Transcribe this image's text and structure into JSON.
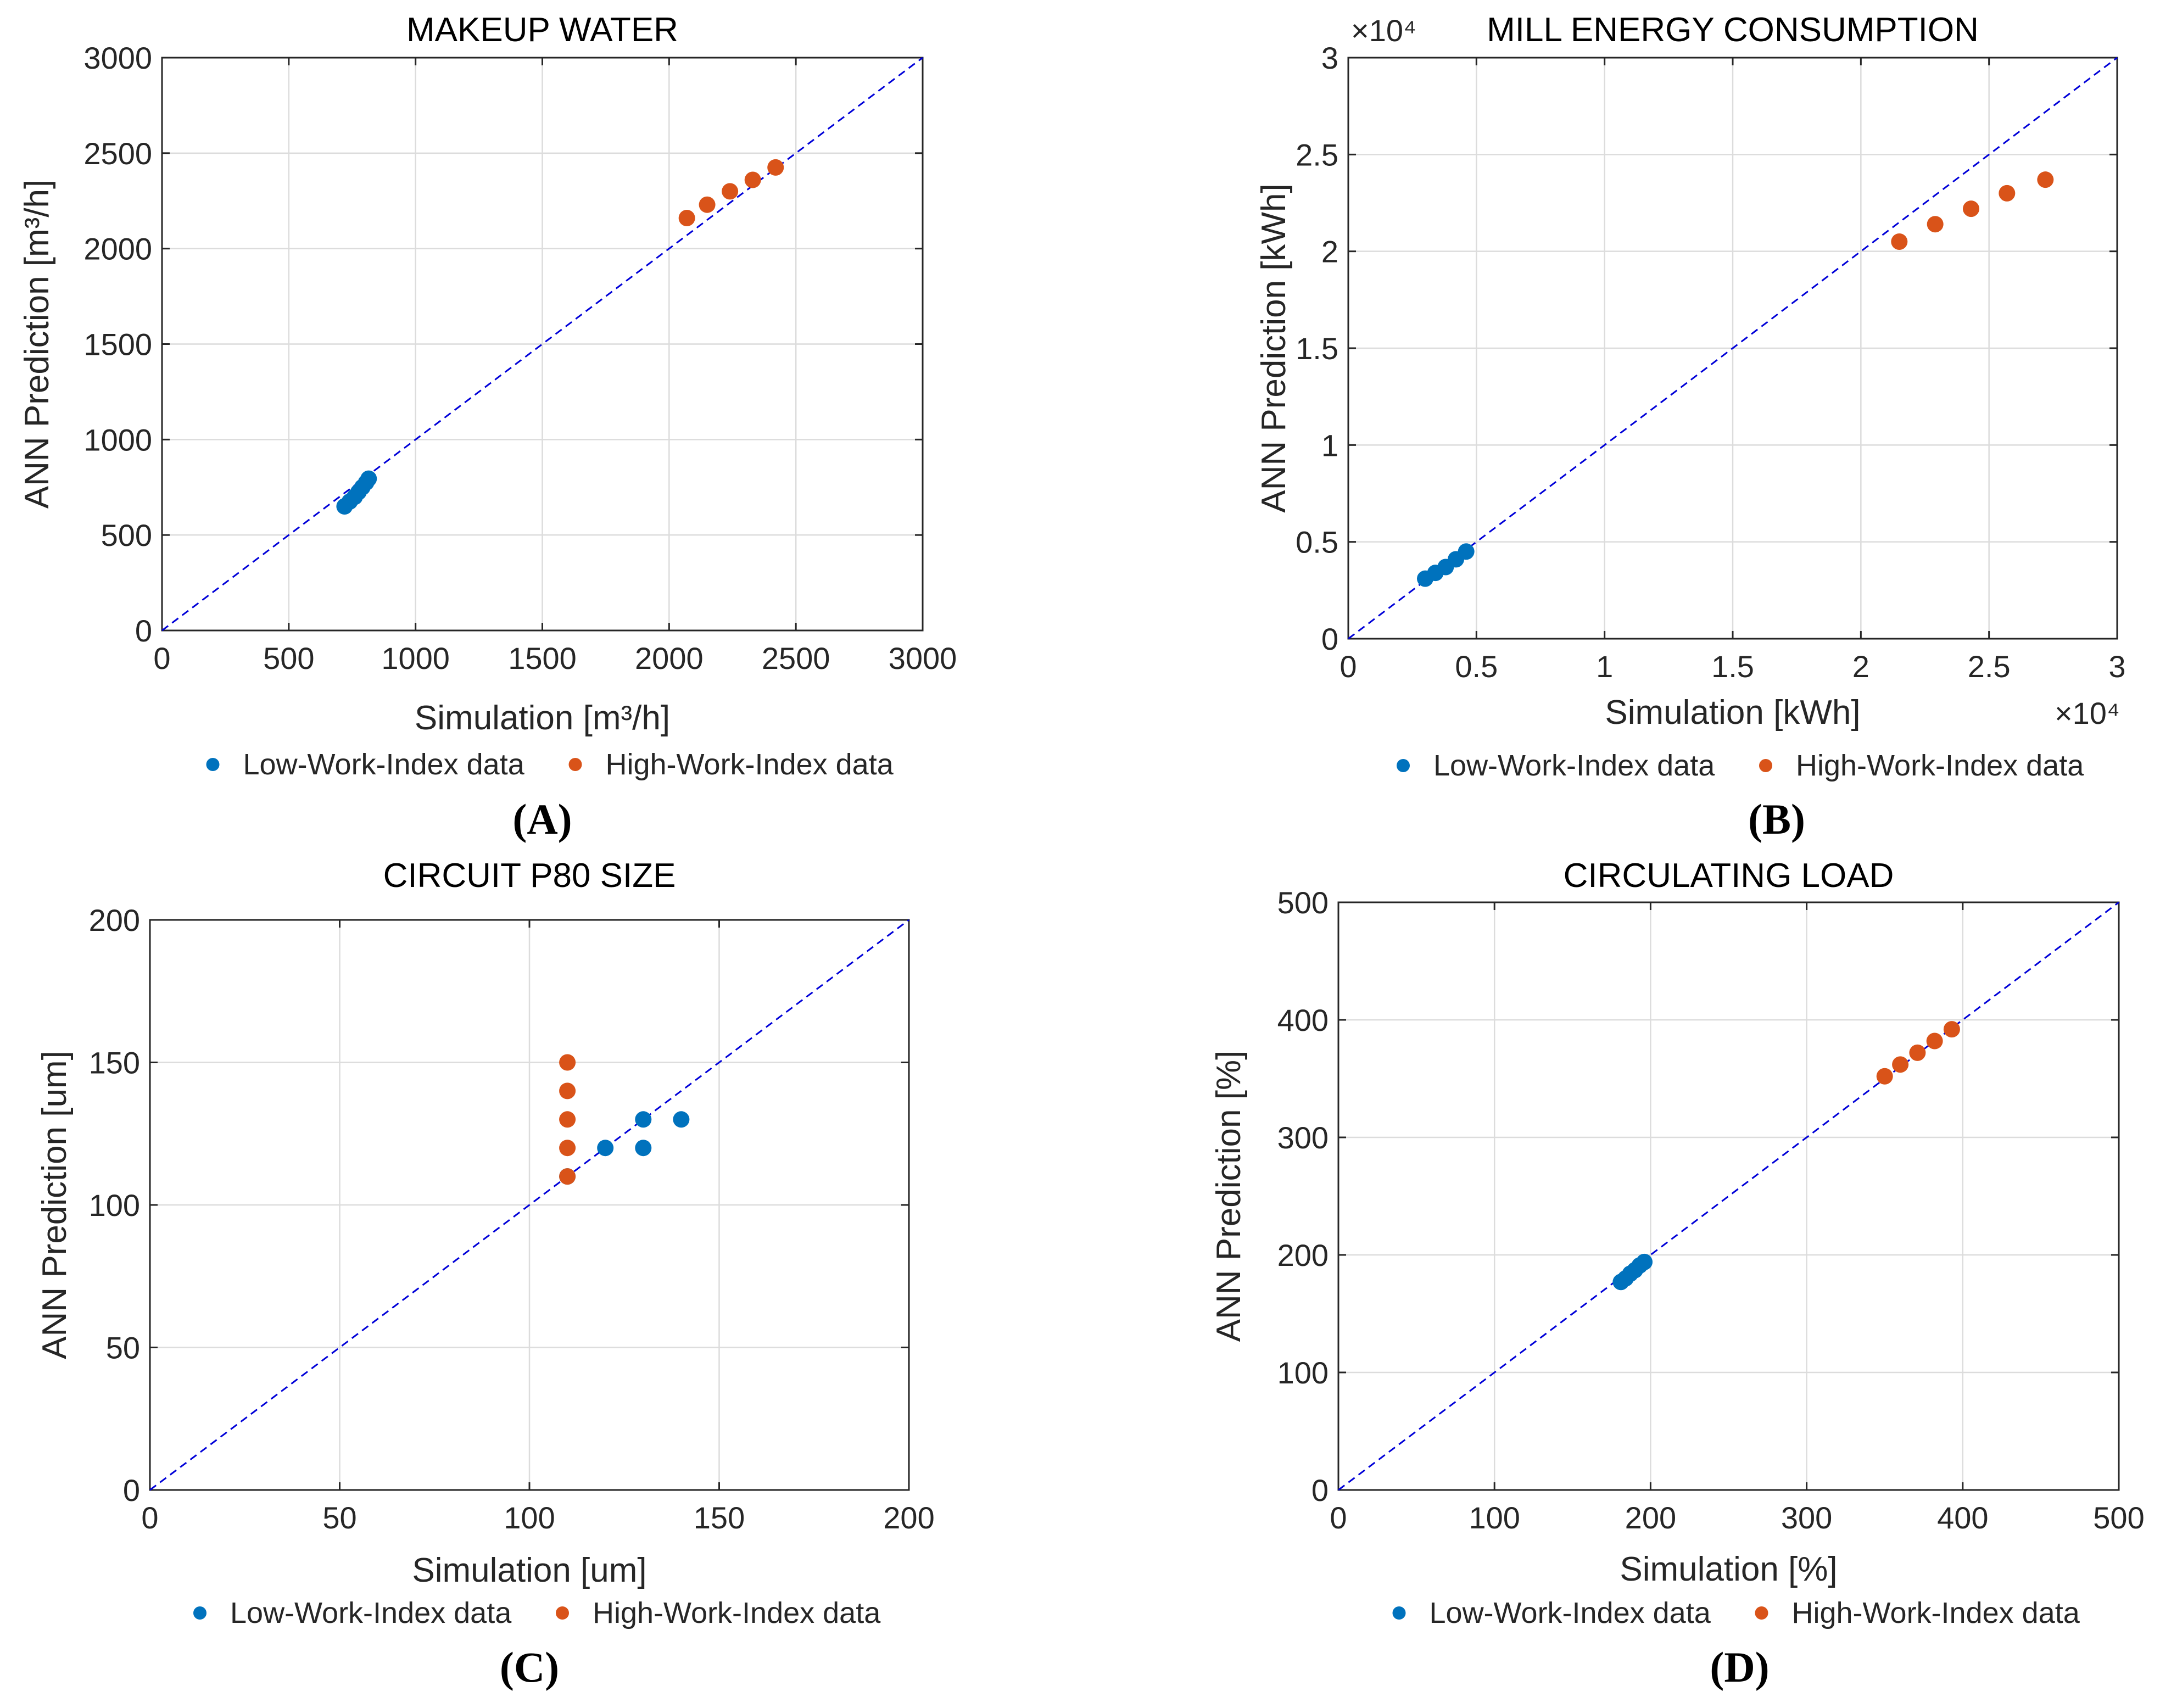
{
  "chart_data": [
    {
      "type": "scatter",
      "title": "MAKEUP WATER",
      "xlabel": "Simulation [m³/h]",
      "ylabel": "ANN Prediction [m³/h]",
      "xlim": [
        0,
        3000
      ],
      "ylim": [
        0,
        3000
      ],
      "xticks": [
        0,
        500,
        1000,
        1500,
        2000,
        2500,
        3000
      ],
      "yticks": [
        0,
        500,
        1000,
        1500,
        2000,
        2500,
        3000
      ],
      "xtick_labels": [
        "0",
        "500",
        "1000",
        "1500",
        "2000",
        "2500",
        "3000"
      ],
      "ytick_labels": [
        "0",
        "500",
        "1000",
        "1500",
        "2000",
        "2500",
        "3000"
      ],
      "x_exponent": "",
      "y_exponent": "",
      "panel_label": "(A)",
      "grid": true,
      "legend_position": "bottom",
      "reference_line": "y = x",
      "series": [
        {
          "name": "Low-Work-Index data",
          "color": "#0072bd",
          "points": [
            [
              720,
              650
            ],
            [
              740,
              675
            ],
            [
              760,
              700
            ],
            [
              775,
              725
            ],
            [
              790,
              750
            ],
            [
              805,
              775
            ],
            [
              815,
              795
            ]
          ]
        },
        {
          "name": "High-Work-Index data",
          "color": "#d95319",
          "points": [
            [
              2070,
              2160
            ],
            [
              2150,
              2230
            ],
            [
              2240,
              2300
            ],
            [
              2330,
              2360
            ],
            [
              2420,
              2425
            ]
          ]
        }
      ]
    },
    {
      "type": "scatter",
      "title": "MILL ENERGY CONSUMPTION",
      "xlabel": "Simulation [kWh]",
      "ylabel": "ANN Prediction [kWh]",
      "xlim": [
        0,
        30000
      ],
      "ylim": [
        0,
        30000
      ],
      "xticks": [
        0,
        5000,
        10000,
        15000,
        20000,
        25000,
        30000
      ],
      "yticks": [
        0,
        5000,
        10000,
        15000,
        20000,
        25000,
        30000
      ],
      "xtick_labels": [
        "0",
        "0.5",
        "1",
        "1.5",
        "2",
        "2.5",
        "3"
      ],
      "ytick_labels": [
        "0",
        "0.5",
        "1",
        "1.5",
        "2",
        "2.5",
        "3"
      ],
      "x_exponent": "×10⁴",
      "y_exponent": "×10⁴",
      "panel_label": "(B)",
      "grid": true,
      "legend_position": "bottom",
      "reference_line": "y = x",
      "series": [
        {
          "name": "Low-Work-Index data",
          "color": "#0072bd",
          "points": [
            [
              3000,
              3100
            ],
            [
              3400,
              3400
            ],
            [
              3800,
              3700
            ],
            [
              4200,
              4100
            ],
            [
              4600,
              4500
            ]
          ]
        },
        {
          "name": "High-Work-Index data",
          "color": "#d95319",
          "points": [
            [
              21500,
              20500
            ],
            [
              22900,
              21400
            ],
            [
              24300,
              22200
            ],
            [
              25700,
              23000
            ],
            [
              27200,
              23700
            ]
          ]
        }
      ]
    },
    {
      "type": "scatter",
      "title": "CIRCUIT P80 SIZE",
      "xlabel": "Simulation [um]",
      "ylabel": "ANN Prediction [um]",
      "xlim": [
        0,
        200
      ],
      "ylim": [
        0,
        200
      ],
      "xticks": [
        0,
        50,
        100,
        150,
        200
      ],
      "yticks": [
        0,
        50,
        100,
        150,
        200
      ],
      "xtick_labels": [
        "0",
        "50",
        "100",
        "150",
        "200"
      ],
      "ytick_labels": [
        "0",
        "50",
        "100",
        "150",
        "200"
      ],
      "x_exponent": "",
      "y_exponent": "",
      "panel_label": "(C)",
      "grid": true,
      "legend_position": "bottom",
      "reference_line": "y = x",
      "series": [
        {
          "name": "Low-Work-Index data",
          "color": "#0072bd",
          "points": [
            [
              110,
              110
            ],
            [
              120,
              120
            ],
            [
              130,
              120
            ],
            [
              130,
              130
            ],
            [
              140,
              130
            ]
          ]
        },
        {
          "name": "High-Work-Index data",
          "color": "#d95319",
          "points": [
            [
              110,
              110
            ],
            [
              110,
              120
            ],
            [
              110,
              130
            ],
            [
              110,
              140
            ],
            [
              110,
              150
            ]
          ]
        }
      ]
    },
    {
      "type": "scatter",
      "title": "CIRCULATING LOAD",
      "xlabel": "Simulation [%]",
      "ylabel": "ANN Prediction [%]",
      "xlim": [
        0,
        500
      ],
      "ylim": [
        0,
        500
      ],
      "xticks": [
        0,
        100,
        200,
        300,
        400,
        500
      ],
      "yticks": [
        0,
        100,
        200,
        300,
        400,
        500
      ],
      "xtick_labels": [
        "0",
        "100",
        "200",
        "300",
        "400",
        "500"
      ],
      "ytick_labels": [
        "0",
        "100",
        "200",
        "300",
        "400",
        "500"
      ],
      "x_exponent": "",
      "y_exponent": "",
      "panel_label": "(D)",
      "grid": true,
      "legend_position": "bottom",
      "reference_line": "y = x",
      "series": [
        {
          "name": "Low-Work-Index data",
          "color": "#0072bd",
          "points": [
            [
              181,
              177
            ],
            [
              184,
              180
            ],
            [
              187,
              184
            ],
            [
              190,
              187
            ],
            [
              193,
              191
            ],
            [
              196,
              194
            ]
          ]
        },
        {
          "name": "High-Work-Index data",
          "color": "#d95319",
          "points": [
            [
              350,
              352
            ],
            [
              360,
              362
            ],
            [
              371,
              372
            ],
            [
              382,
              382
            ],
            [
              393,
              392
            ]
          ]
        }
      ]
    }
  ]
}
